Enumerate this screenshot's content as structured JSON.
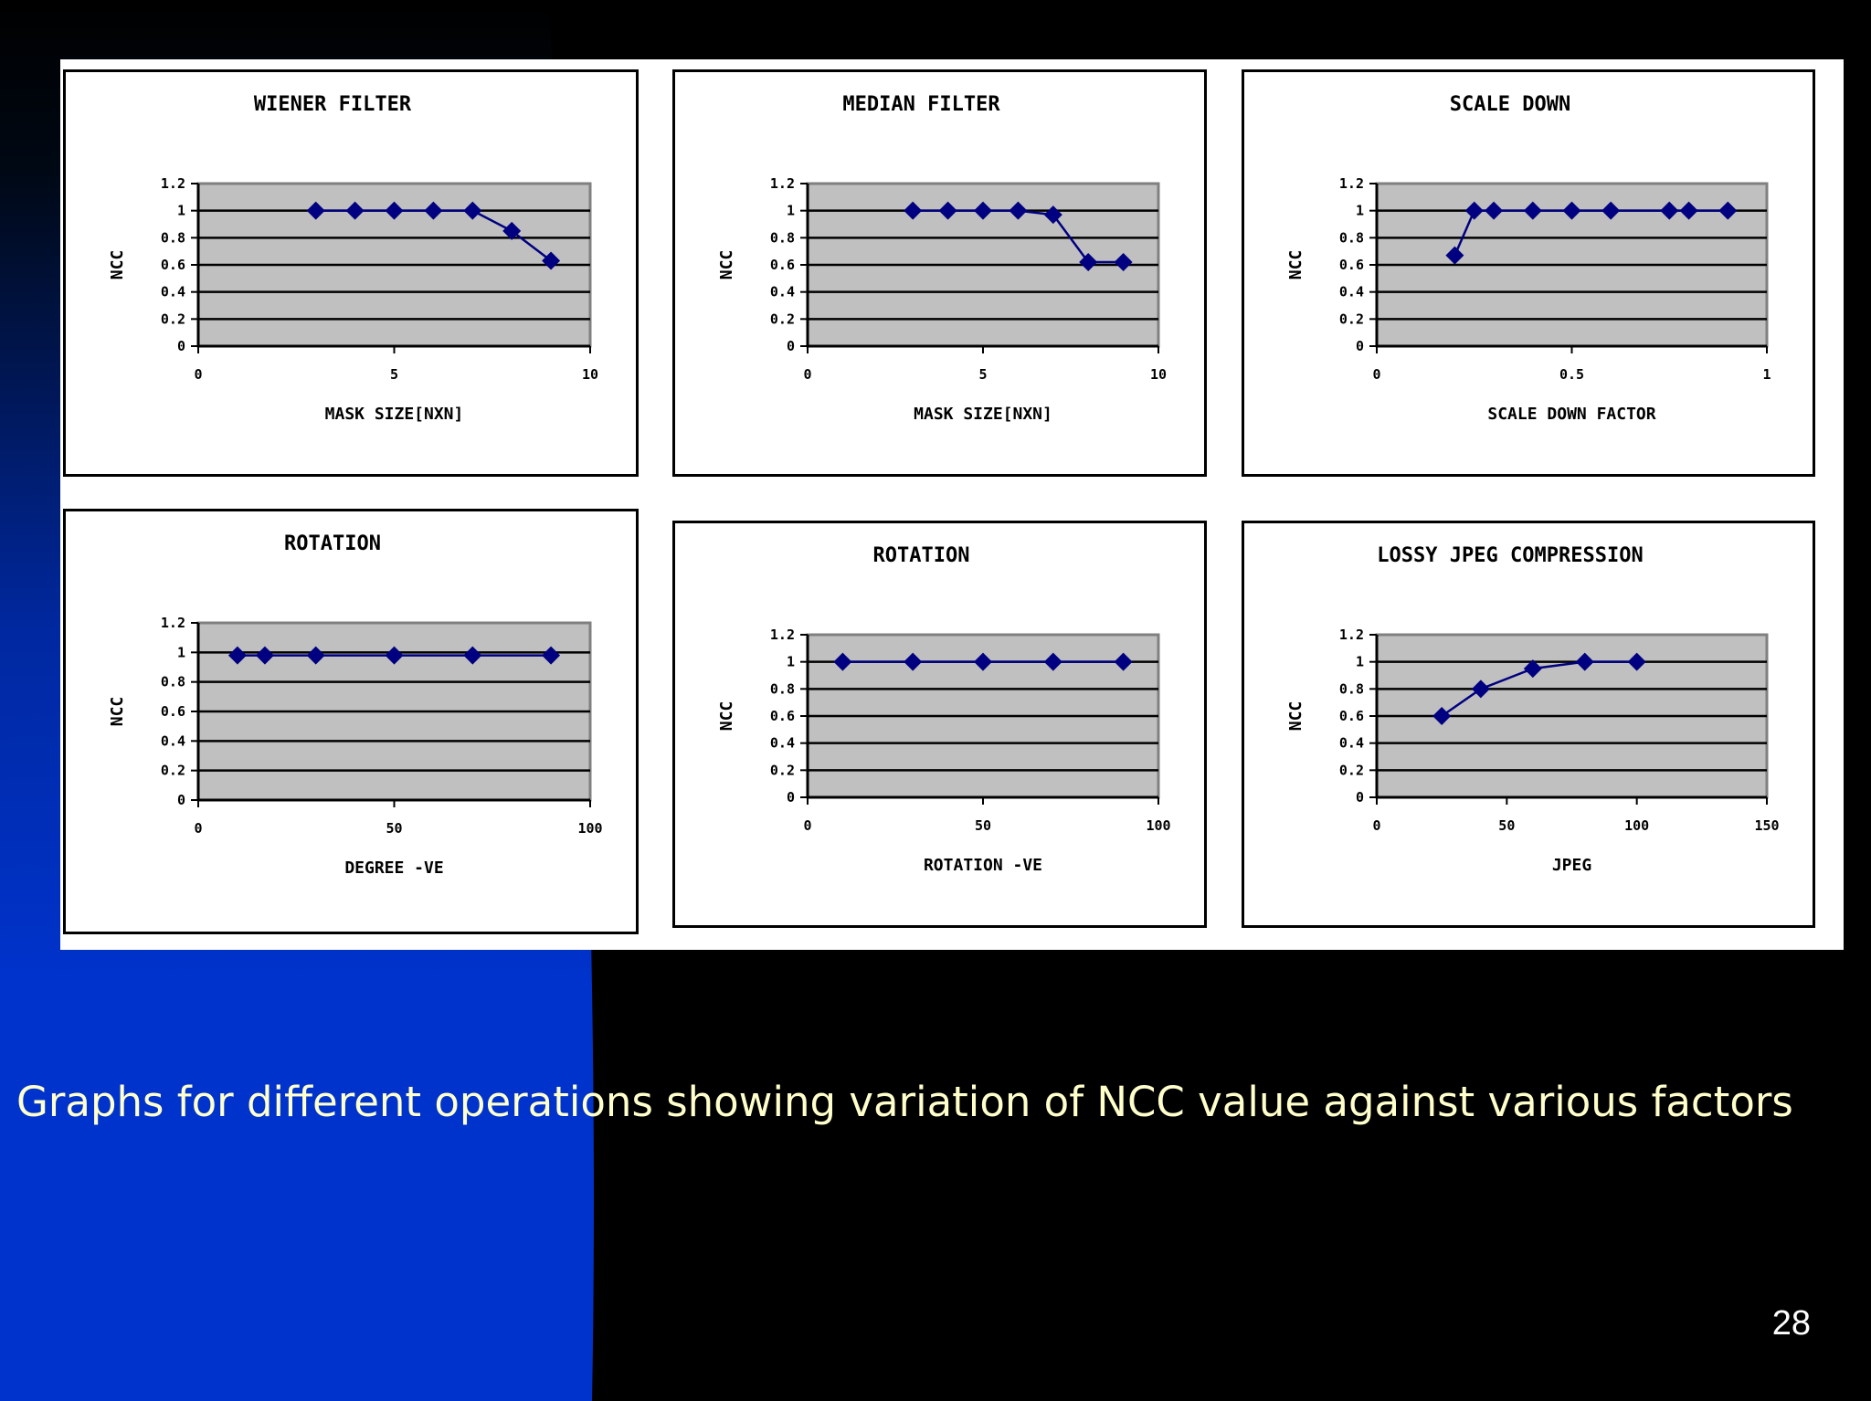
{
  "slide": {
    "caption": "Graphs for different operations showing variation of NCC value against various factors",
    "page_number": "28",
    "colors": {
      "background": "#000000",
      "accent_blue": "#0033cc",
      "panel": "#ffffff",
      "plot_area": "#c0c0c0",
      "series": "#000080",
      "caption_text": "#ffffcc"
    }
  },
  "chart_data": [
    {
      "type": "line",
      "title": "WIENER FILTER",
      "xlabel": "MASK SIZE[NXN]",
      "ylabel": "NCC",
      "xlim": [
        0,
        10
      ],
      "ylim": [
        0,
        1.2
      ],
      "xticks": [
        0,
        5,
        10
      ],
      "xtick_labels": [
        "0",
        "5",
        "10"
      ],
      "yticks": [
        0,
        0.2,
        0.4,
        0.6,
        0.8,
        1,
        1.2
      ],
      "ytick_labels": [
        "0",
        "0.2",
        "0.4",
        "0.6",
        "0.8",
        "1",
        "1.2"
      ],
      "grid": true,
      "series": [
        {
          "x": [
            3,
            4,
            5,
            6,
            7,
            8,
            9
          ],
          "y": [
            1,
            1,
            1,
            1,
            1,
            0.85,
            0.63
          ]
        }
      ]
    },
    {
      "type": "line",
      "title": "MEDIAN FILTER",
      "xlabel": "MASK SIZE[NXN]",
      "ylabel": "NCC",
      "xlim": [
        0,
        10
      ],
      "ylim": [
        0,
        1.2
      ],
      "xticks": [
        0,
        5,
        10
      ],
      "xtick_labels": [
        "0",
        "5",
        "10"
      ],
      "yticks": [
        0,
        0.2,
        0.4,
        0.6,
        0.8,
        1,
        1.2
      ],
      "ytick_labels": [
        "0",
        "0.2",
        "0.4",
        "0.6",
        "0.8",
        "1",
        "1.2"
      ],
      "grid": true,
      "series": [
        {
          "x": [
            3,
            4,
            5,
            6,
            7,
            8,
            9
          ],
          "y": [
            1,
            1,
            1,
            1,
            0.97,
            0.62,
            0.62
          ]
        }
      ]
    },
    {
      "type": "line",
      "title": "SCALE DOWN",
      "xlabel": "SCALE DOWN FACTOR",
      "ylabel": "NCC",
      "xlim": [
        0,
        1
      ],
      "ylim": [
        0,
        1.2
      ],
      "xticks": [
        0,
        0.5,
        1
      ],
      "xtick_labels": [
        "0",
        "0.5",
        "1"
      ],
      "yticks": [
        0,
        0.2,
        0.4,
        0.6,
        0.8,
        1,
        1.2
      ],
      "ytick_labels": [
        "0",
        "0.2",
        "0.4",
        "0.6",
        "0.8",
        "1",
        "1.2"
      ],
      "grid": true,
      "series": [
        {
          "x": [
            0.2,
            0.25,
            0.3,
            0.4,
            0.5,
            0.6,
            0.75,
            0.8,
            0.9
          ],
          "y": [
            0.67,
            1,
            1,
            1,
            1,
            1,
            1,
            1,
            1
          ]
        }
      ]
    },
    {
      "type": "line",
      "title": "ROTATION",
      "xlabel": "DEGREE -VE",
      "ylabel": "NCC",
      "xlim": [
        0,
        100
      ],
      "ylim": [
        0,
        1.2
      ],
      "xticks": [
        0,
        50,
        100
      ],
      "xtick_labels": [
        "0",
        "50",
        "100"
      ],
      "yticks": [
        0,
        0.2,
        0.4,
        0.6,
        0.8,
        1,
        1.2
      ],
      "ytick_labels": [
        "0",
        "0.2",
        "0.4",
        "0.6",
        "0.8",
        "1",
        "1.2"
      ],
      "grid": true,
      "series": [
        {
          "x": [
            10,
            17,
            30,
            50,
            70,
            90
          ],
          "y": [
            0.98,
            0.98,
            0.98,
            0.98,
            0.98,
            0.98
          ]
        }
      ]
    },
    {
      "type": "line",
      "title": "ROTATION",
      "xlabel": "ROTATION -VE",
      "ylabel": "NCC",
      "xlim": [
        0,
        100
      ],
      "ylim": [
        0,
        1.2
      ],
      "xticks": [
        0,
        50,
        100
      ],
      "xtick_labels": [
        "0",
        "50",
        "100"
      ],
      "yticks": [
        0,
        0.2,
        0.4,
        0.6,
        0.8,
        1,
        1.2
      ],
      "ytick_labels": [
        "0",
        "0.2",
        "0.4",
        "0.6",
        "0.8",
        "1",
        "1.2"
      ],
      "grid": true,
      "series": [
        {
          "x": [
            10,
            30,
            50,
            70,
            90
          ],
          "y": [
            1,
            1,
            1,
            1,
            1
          ]
        }
      ]
    },
    {
      "type": "line",
      "title": "LOSSY JPEG COMPRESSION",
      "xlabel": "JPEG",
      "ylabel": "NCC",
      "xlim": [
        0,
        150
      ],
      "ylim": [
        0,
        1.2
      ],
      "xticks": [
        0,
        50,
        100,
        150
      ],
      "xtick_labels": [
        "0",
        "50",
        "100",
        "150"
      ],
      "yticks": [
        0,
        0.2,
        0.4,
        0.6,
        0.8,
        1,
        1.2
      ],
      "ytick_labels": [
        "0",
        "0.2",
        "0.4",
        "0.6",
        "0.8",
        "1",
        "1.2"
      ],
      "grid": true,
      "series": [
        {
          "x": [
            25,
            40,
            60,
            80,
            100
          ],
          "y": [
            0.6,
            0.8,
            0.95,
            1,
            1
          ]
        }
      ]
    }
  ]
}
